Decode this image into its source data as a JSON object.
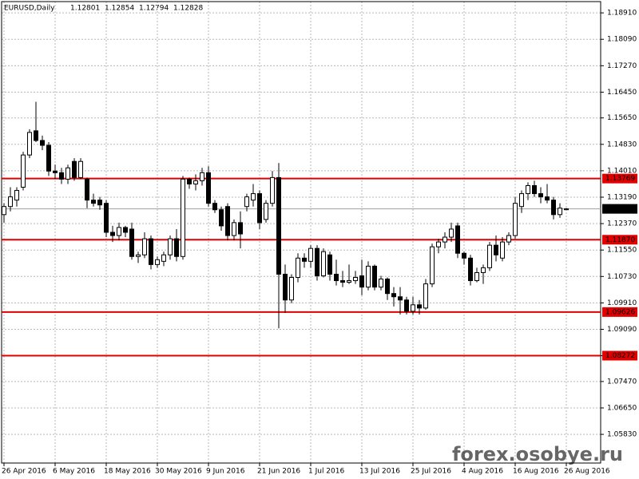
{
  "chart_data": {
    "type": "candlestick",
    "title": "EURUSD,Daily",
    "watermark": "forex.osobye.ru",
    "categories": [
      "26 Apr 2016",
      null,
      null,
      null,
      null,
      null,
      null,
      null,
      "6 May 2016",
      null,
      null,
      null,
      null,
      null,
      null,
      null,
      "18 May 2016",
      null,
      null,
      null,
      null,
      null,
      null,
      null,
      "30 May 2016",
      null,
      null,
      null,
      null,
      null,
      null,
      null,
      "9 Jun 2016",
      null,
      null,
      null,
      null,
      null,
      null,
      null,
      "21 Jun 2016",
      null,
      null,
      null,
      null,
      null,
      null,
      null,
      "1 Jul 2016",
      null,
      null,
      null,
      null,
      null,
      null,
      null,
      "13 Jul 2016",
      null,
      null,
      null,
      null,
      null,
      null,
      null,
      "25 Jul 2016",
      null,
      null,
      null,
      null,
      null,
      null,
      null,
      "4 Aug 2016",
      null,
      null,
      null,
      null,
      null,
      null,
      null,
      "16 Aug 2016",
      null,
      null,
      null,
      null,
      null,
      null,
      null,
      "26 Aug 2016"
    ],
    "open": [
      1.1265,
      1.129,
      1.131,
      1.135,
      1.145,
      1.1525,
      1.1495,
      1.148,
      1.14,
      1.1395,
      1.1375,
      1.143,
      1.138,
      1.1375,
      1.131,
      1.131,
      1.13,
      1.121,
      1.12,
      1.1225,
      1.122,
      1.1135,
      1.114,
      1.119,
      1.111,
      1.112,
      1.114,
      1.119,
      1.1135,
      1.1375,
      1.136,
      1.137,
      1.1395,
      1.13,
      1.128,
      1.129,
      1.12,
      1.124,
      1.129,
      1.131,
      1.133,
      1.125,
      1.13,
      1.138,
      1.108,
      1.1,
      1.107,
      1.113,
      1.112,
      1.116,
      1.1075,
      1.114,
      1.108,
      1.106,
      1.1055,
      1.106,
      1.1075,
      1.104,
      1.1105,
      1.104,
      1.1065,
      1.102,
      1.101,
      1.1,
      1.0965,
      1.0985,
      1.0975,
      1.105,
      1.1165,
      1.118,
      1.1195,
      1.123,
      1.1145,
      1.113,
      1.106,
      1.1085,
      1.11,
      1.117,
      1.113,
      1.118,
      1.12,
      1.129,
      1.133,
      1.1355,
      1.133,
      1.132,
      1.131,
      1.1265,
      1.12801
    ],
    "high": [
      1.13,
      1.135,
      1.135,
      1.146,
      1.153,
      1.1615,
      1.151,
      1.149,
      1.142,
      1.141,
      1.142,
      1.144,
      1.144,
      1.138,
      1.133,
      1.132,
      1.131,
      1.123,
      1.124,
      1.123,
      1.124,
      1.115,
      1.121,
      1.12,
      1.1135,
      1.115,
      1.12,
      1.122,
      1.1385,
      1.138,
      1.139,
      1.141,
      1.1415,
      1.131,
      1.129,
      1.13,
      1.125,
      1.1275,
      1.133,
      1.136,
      1.134,
      1.131,
      1.14,
      1.1425,
      1.111,
      1.108,
      1.1145,
      1.1145,
      1.117,
      1.117,
      1.116,
      1.115,
      1.1125,
      1.109,
      1.111,
      1.109,
      1.1125,
      1.112,
      1.111,
      1.1075,
      1.107,
      1.104,
      1.104,
      1.101,
      1.101,
      1.1,
      1.1065,
      1.1175,
      1.119,
      1.121,
      1.124,
      1.124,
      1.115,
      1.114,
      1.11,
      1.111,
      1.118,
      1.12,
      1.1195,
      1.121,
      1.132,
      1.134,
      1.1365,
      1.137,
      1.135,
      1.136,
      1.132,
      1.13,
      1.12854
    ],
    "low": [
      1.124,
      1.1275,
      1.129,
      1.134,
      1.144,
      1.149,
      1.1465,
      1.1385,
      1.1375,
      1.136,
      1.136,
      1.137,
      1.1375,
      1.1285,
      1.129,
      1.128,
      1.1195,
      1.118,
      1.1185,
      1.1195,
      1.1125,
      1.1115,
      1.113,
      1.1095,
      1.11,
      1.1105,
      1.1125,
      1.112,
      1.1125,
      1.1345,
      1.134,
      1.1355,
      1.129,
      1.127,
      1.1215,
      1.1185,
      1.1185,
      1.116,
      1.1275,
      1.129,
      1.122,
      1.124,
      1.129,
      1.0912,
      1.096,
      1.099,
      1.1055,
      1.11,
      1.11,
      1.106,
      1.107,
      1.106,
      1.1045,
      1.104,
      1.105,
      1.105,
      1.1015,
      1.103,
      1.103,
      1.103,
      1.1,
      1.098,
      1.0955,
      1.0955,
      1.0955,
      1.0955,
      1.097,
      1.104,
      1.1145,
      1.116,
      1.118,
      1.113,
      1.111,
      1.1045,
      1.1055,
      1.105,
      1.109,
      1.112,
      1.112,
      1.117,
      1.119,
      1.127,
      1.131,
      1.132,
      1.13,
      1.13,
      1.125,
      1.1255,
      1.12794
    ],
    "close": [
      1.129,
      1.132,
      1.134,
      1.145,
      1.152,
      1.1495,
      1.148,
      1.14,
      1.1395,
      1.1375,
      1.141,
      1.138,
      1.143,
      1.131,
      1.13,
      1.1295,
      1.121,
      1.12,
      1.1225,
      1.121,
      1.1135,
      1.114,
      1.119,
      1.111,
      1.1125,
      1.114,
      1.119,
      1.1135,
      1.1375,
      1.136,
      1.137,
      1.1395,
      1.13,
      1.128,
      1.123,
      1.12,
      1.124,
      1.1205,
      1.132,
      1.133,
      1.124,
      1.13,
      1.138,
      1.108,
      1.1,
      1.107,
      1.113,
      1.112,
      1.116,
      1.1075,
      1.115,
      1.108,
      1.106,
      1.1055,
      1.106,
      1.107,
      1.104,
      1.1105,
      1.104,
      1.1065,
      1.102,
      1.101,
      1.1,
      1.0965,
      1.0985,
      1.0975,
      1.105,
      1.1165,
      1.118,
      1.1195,
      1.122,
      1.1145,
      1.113,
      1.106,
      1.1085,
      1.11,
      1.117,
      1.114,
      1.118,
      1.12,
      1.13,
      1.133,
      1.1355,
      1.133,
      1.132,
      1.131,
      1.1265,
      1.1285,
      1.12828
    ],
    "ylim": [
      1.0494,
      1.1926
    ],
    "yticks": [
      {
        "value": 1.1891,
        "label": "1.18910"
      },
      {
        "value": 1.1809,
        "label": "1.18090"
      },
      {
        "value": 1.1727,
        "label": "1.17270"
      },
      {
        "value": 1.1645,
        "label": "1.16450"
      },
      {
        "value": 1.1565,
        "label": "1.15650"
      },
      {
        "value": 1.1483,
        "label": "1.14830"
      },
      {
        "value": 1.1401,
        "label": "1.14010"
      },
      {
        "value": 1.1319,
        "label": "1.13190"
      },
      {
        "value": 1.1237,
        "label": "1.12370"
      },
      {
        "value": 1.1155,
        "label": "1.11550"
      },
      {
        "value": 1.1073,
        "label": "1.10730"
      },
      {
        "value": 1.0991,
        "label": "1.09910"
      },
      {
        "value": 1.0909,
        "label": "1.09090"
      },
      {
        "value": 1.0827,
        "label": "1.08270"
      },
      {
        "value": 1.0747,
        "label": "1.07470"
      },
      {
        "value": 1.0665,
        "label": "1.06650"
      },
      {
        "value": 1.0583,
        "label": "1.05830"
      }
    ],
    "levels": [
      1.13769,
      {
        "value": 1.1187,
        "label": "1.11870"
      },
      1.09626,
      1.08272
    ],
    "grid": true,
    "up_color": "#ffffff",
    "down_color": "#000000",
    "level_color": "#e00000"
  }
}
